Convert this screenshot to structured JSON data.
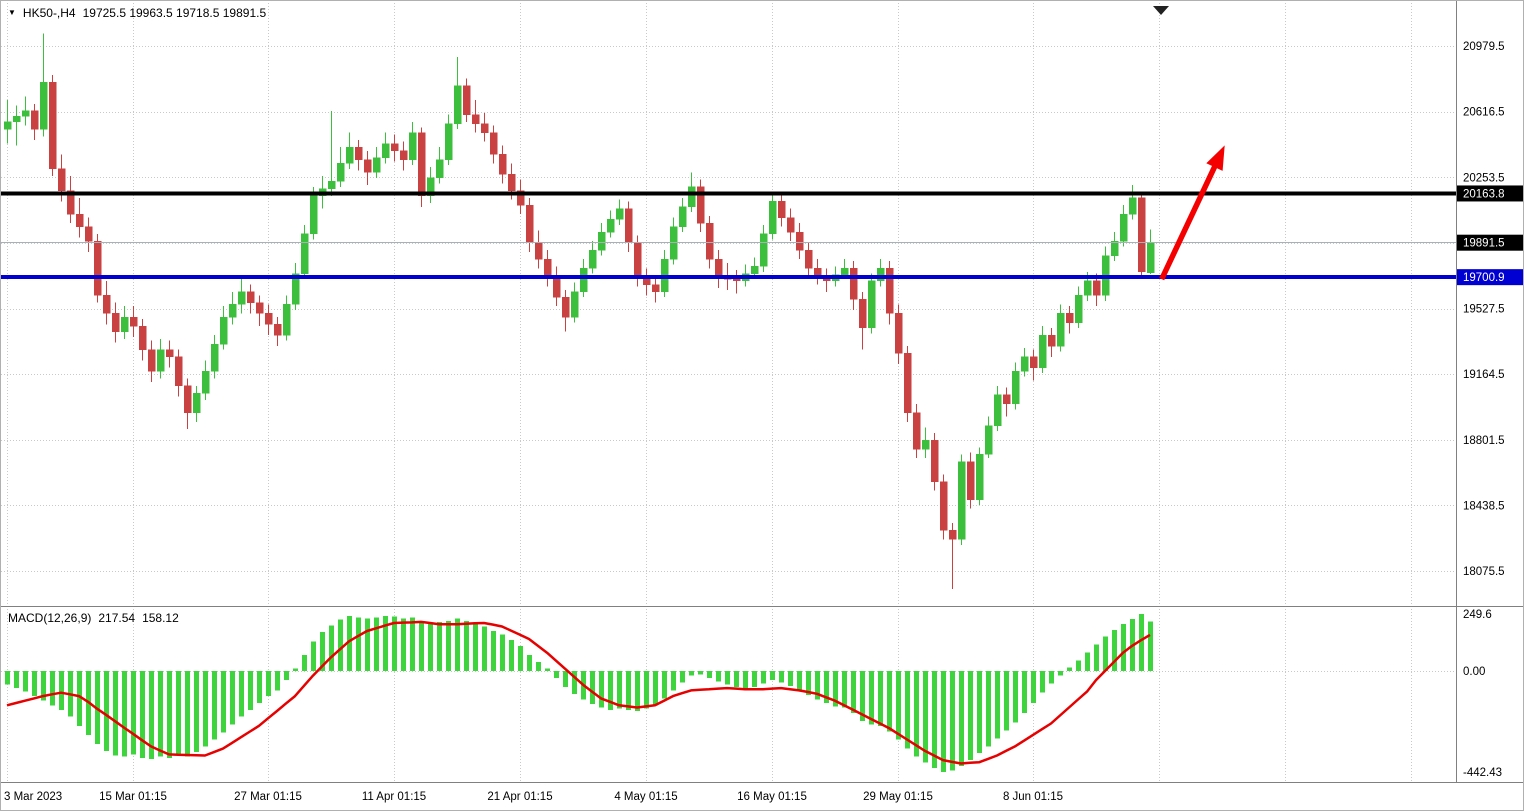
{
  "header": {
    "symbol_period": "HK50-,H4",
    "ohlc": "19725.5 19963.5 19718.5 19891.5"
  },
  "icons": {
    "symbol_triangle": "▼",
    "shift_marker": "▼"
  },
  "macd_panel": {
    "label": "MACD(12,26,9)",
    "main_value": "217.54",
    "signal_value": "158.12"
  },
  "colors": {
    "bg": "#ffffff",
    "grid": "#c9c9c9",
    "up": "#3cbf3c",
    "down": "#c94141",
    "macd_hist": "#3dd43d",
    "macd_signal": "#e60000",
    "level_black": "#000000",
    "level_blue": "#0000d2",
    "current_line": "#a8b0b8",
    "arrow": "#f40000",
    "axis_text": "#000000",
    "badge_text": "#ffffff",
    "separator": "#808080",
    "marker": "#222222"
  },
  "chart_data": [
    {
      "type": "candlestick",
      "symbol": "HK50-",
      "timeframe": "H4",
      "last_candle": {
        "open": 19725.5,
        "high": 19963.5,
        "low": 19718.5,
        "close": 19891.5
      },
      "y_ticks": [
        20979.5,
        20616.5,
        20253.5,
        19891.5,
        19527.5,
        19164.5,
        18801.5,
        18438.5,
        18075.5
      ],
      "x_ticks": [
        {
          "index": 0,
          "label": "3 Mar 2023"
        },
        {
          "index": 14,
          "label": "15 Mar 01:15"
        },
        {
          "index": 29,
          "label": "27 Mar 01:15"
        },
        {
          "index": 43,
          "label": "11 Apr 01:15"
        },
        {
          "index": 57,
          "label": "21 Apr 01:15"
        },
        {
          "index": 71,
          "label": "4 May 01:15"
        },
        {
          "index": 85,
          "label": "16 May 01:15"
        },
        {
          "index": 99,
          "label": "29 May 01:15"
        },
        {
          "index": 114,
          "label": "8 Jun 01:15"
        },
        {
          "index": 128,
          "label": ""
        },
        {
          "index": 142,
          "label": ""
        },
        {
          "index": 156,
          "label": ""
        }
      ],
      "levels": [
        {
          "name": "resistance",
          "label": "20163.8",
          "value": 20163.8,
          "color": "#000000",
          "line_width": 4,
          "badge_bg": "#000000"
        },
        {
          "name": "current-price",
          "label": "19891.5",
          "value": 19891.5,
          "color": "#a8b0b8",
          "line_width": 1,
          "badge_bg": "#000000"
        },
        {
          "name": "support",
          "label": "19700.9",
          "value": 19700.9,
          "color": "#0000d2",
          "line_width": 4,
          "badge_bg": "#0000d2"
        }
      ],
      "arrow": {
        "from_index": 128.3,
        "from_price": 19690,
        "to_index": 135.3,
        "to_price": 20430
      },
      "ohlc": [
        [
          20520,
          20680,
          20440,
          20560
        ],
        [
          20560,
          20650,
          20430,
          20590
        ],
        [
          20590,
          20700,
          20540,
          20620
        ],
        [
          20620,
          20660,
          20460,
          20520
        ],
        [
          20520,
          21050,
          20480,
          20780
        ],
        [
          20780,
          20820,
          20260,
          20300
        ],
        [
          20300,
          20380,
          20120,
          20180
        ],
        [
          20180,
          20260,
          20000,
          20050
        ],
        [
          20050,
          20140,
          19920,
          19980
        ],
        [
          19980,
          20030,
          19840,
          19900
        ],
        [
          19900,
          19940,
          19560,
          19600
        ],
        [
          19600,
          19680,
          19440,
          19500
        ],
        [
          19500,
          19560,
          19340,
          19400
        ],
        [
          19400,
          19540,
          19360,
          19480
        ],
        [
          19480,
          19540,
          19370,
          19430
        ],
        [
          19430,
          19470,
          19240,
          19300
        ],
        [
          19300,
          19350,
          19120,
          19180
        ],
        [
          19180,
          19360,
          19140,
          19300
        ],
        [
          19300,
          19350,
          19200,
          19260
        ],
        [
          19260,
          19300,
          19040,
          19100
        ],
        [
          19100,
          19140,
          18860,
          18950
        ],
        [
          18950,
          19100,
          18900,
          19060
        ],
        [
          19060,
          19240,
          19020,
          19180
        ],
        [
          19180,
          19380,
          19140,
          19330
        ],
        [
          19330,
          19540,
          19300,
          19480
        ],
        [
          19480,
          19620,
          19440,
          19550
        ],
        [
          19550,
          19700,
          19500,
          19620
        ],
        [
          19620,
          19660,
          19500,
          19560
        ],
        [
          19560,
          19600,
          19430,
          19500
        ],
        [
          19500,
          19550,
          19380,
          19440
        ],
        [
          19440,
          19480,
          19320,
          19380
        ],
        [
          19380,
          19600,
          19350,
          19550
        ],
        [
          19550,
          19780,
          19520,
          19720
        ],
        [
          19720,
          19990,
          19690,
          19940
        ],
        [
          19940,
          20200,
          19910,
          20150
        ],
        [
          20150,
          20260,
          20080,
          20190
        ],
        [
          20190,
          20620,
          20150,
          20230
        ],
        [
          20230,
          20420,
          20200,
          20330
        ],
        [
          20330,
          20500,
          20300,
          20420
        ],
        [
          20420,
          20460,
          20290,
          20350
        ],
        [
          20350,
          20400,
          20210,
          20280
        ],
        [
          20280,
          20420,
          20250,
          20360
        ],
        [
          20360,
          20500,
          20330,
          20440
        ],
        [
          20440,
          20490,
          20340,
          20400
        ],
        [
          20400,
          20450,
          20290,
          20350
        ],
        [
          20350,
          20560,
          20320,
          20500
        ],
        [
          20500,
          20530,
          20090,
          20150
        ],
        [
          20150,
          20310,
          20110,
          20250
        ],
        [
          20250,
          20420,
          20220,
          20350
        ],
        [
          20350,
          20600,
          20320,
          20550
        ],
        [
          20550,
          20920,
          20520,
          20760
        ],
        [
          20760,
          20800,
          20560,
          20600
        ],
        [
          20600,
          20680,
          20500,
          20550
        ],
        [
          20550,
          20610,
          20450,
          20500
        ],
        [
          20500,
          20540,
          20330,
          20380
        ],
        [
          20380,
          20430,
          20220,
          20270
        ],
        [
          20270,
          20330,
          20130,
          20180
        ],
        [
          20180,
          20240,
          20050,
          20100
        ],
        [
          20100,
          20140,
          19840,
          19890
        ],
        [
          19890,
          19960,
          19750,
          19800
        ],
        [
          19800,
          19850,
          19650,
          19700
        ],
        [
          19700,
          19760,
          19540,
          19590
        ],
        [
          19590,
          19630,
          19400,
          19480
        ],
        [
          19480,
          19670,
          19450,
          19620
        ],
        [
          19620,
          19800,
          19590,
          19750
        ],
        [
          19750,
          19900,
          19720,
          19850
        ],
        [
          19850,
          20000,
          19820,
          19950
        ],
        [
          19950,
          20070,
          19920,
          20020
        ],
        [
          20020,
          20130,
          19990,
          20080
        ],
        [
          20080,
          20120,
          19840,
          19890
        ],
        [
          19890,
          19930,
          19650,
          19700
        ],
        [
          19700,
          19750,
          19600,
          19660
        ],
        [
          19660,
          19700,
          19560,
          19620
        ],
        [
          19620,
          19850,
          19590,
          19800
        ],
        [
          19800,
          20030,
          19770,
          19980
        ],
        [
          19980,
          20140,
          19950,
          20090
        ],
        [
          20090,
          20280,
          20060,
          20200
        ],
        [
          20200,
          20240,
          19950,
          20000
        ],
        [
          20000,
          20040,
          19750,
          19800
        ],
        [
          19800,
          19850,
          19640,
          19700
        ],
        [
          19700,
          19780,
          19630,
          19690
        ],
        [
          19690,
          19740,
          19610,
          19680
        ],
        [
          19680,
          19770,
          19650,
          19720
        ],
        [
          19720,
          19810,
          19690,
          19760
        ],
        [
          19760,
          19990,
          19730,
          19940
        ],
        [
          19940,
          20170,
          19910,
          20120
        ],
        [
          20120,
          20160,
          19980,
          20030
        ],
        [
          20030,
          20080,
          19900,
          19950
        ],
        [
          19950,
          20000,
          19800,
          19850
        ],
        [
          19850,
          19890,
          19700,
          19750
        ],
        [
          19750,
          19800,
          19660,
          19710
        ],
        [
          19710,
          19750,
          19620,
          19680
        ],
        [
          19680,
          19760,
          19650,
          19715
        ],
        [
          19715,
          19800,
          19690,
          19750
        ],
        [
          19750,
          19790,
          19520,
          19580
        ],
        [
          19580,
          19620,
          19300,
          19420
        ],
        [
          19420,
          19720,
          19390,
          19680
        ],
        [
          19680,
          19800,
          19650,
          19750
        ],
        [
          19750,
          19790,
          19440,
          19500
        ],
        [
          19500,
          19550,
          19220,
          19280
        ],
        [
          19280,
          19320,
          18900,
          18950
        ],
        [
          18950,
          19000,
          18700,
          18750
        ],
        [
          18750,
          18870,
          18700,
          18800
        ],
        [
          18800,
          18840,
          18520,
          18570
        ],
        [
          18570,
          18610,
          18250,
          18300
        ],
        [
          18300,
          18340,
          17975,
          18250
        ],
        [
          18250,
          18720,
          18220,
          18680
        ],
        [
          18680,
          18730,
          18420,
          18470
        ],
        [
          18470,
          18760,
          18440,
          18720
        ],
        [
          18720,
          18930,
          18700,
          18880
        ],
        [
          18880,
          19100,
          18850,
          19050
        ],
        [
          19050,
          19090,
          18930,
          19000
        ],
        [
          19000,
          19230,
          18970,
          19180
        ],
        [
          19180,
          19310,
          19150,
          19260
        ],
        [
          19260,
          19300,
          19130,
          19200
        ],
        [
          19200,
          19430,
          19170,
          19380
        ],
        [
          19380,
          19420,
          19260,
          19320
        ],
        [
          19320,
          19550,
          19290,
          19500
        ],
        [
          19500,
          19540,
          19390,
          19450
        ],
        [
          19450,
          19650,
          19420,
          19600
        ],
        [
          19600,
          19730,
          19570,
          19680
        ],
        [
          19680,
          19720,
          19540,
          19600
        ],
        [
          19600,
          19870,
          19570,
          19820
        ],
        [
          19820,
          19950,
          19790,
          19900
        ],
        [
          19900,
          20100,
          19870,
          20050
        ],
        [
          20050,
          20210,
          20020,
          20140
        ],
        [
          20140,
          20170,
          19700,
          19730
        ],
        [
          19725.5,
          19963.5,
          19718.5,
          19891.5
        ]
      ]
    },
    {
      "type": "bar",
      "name": "MACD(12,26,9)",
      "values": {
        "macd": 217.54,
        "signal": 158.12
      },
      "y_ticks": [
        {
          "value": 249.6,
          "label": "249.6"
        },
        {
          "value": 0,
          "label": "0.00"
        },
        {
          "value": -442.43,
          "label": "-442.43"
        }
      ],
      "histogram": [
        -60,
        -75,
        -90,
        -110,
        -130,
        -150,
        -170,
        -200,
        -240,
        -280,
        -320,
        -350,
        -370,
        -375,
        -365,
        -380,
        -385,
        -375,
        -380,
        -370,
        -375,
        -355,
        -330,
        -300,
        -270,
        -235,
        -200,
        -170,
        -140,
        -110,
        -85,
        -40,
        10,
        70,
        130,
        170,
        200,
        225,
        240,
        235,
        230,
        235,
        240,
        238,
        230,
        235,
        215,
        210,
        215,
        220,
        230,
        220,
        205,
        195,
        175,
        160,
        135,
        110,
        70,
        40,
        10,
        -30,
        -70,
        -100,
        -125,
        -145,
        -160,
        -170,
        -165,
        -170,
        -175,
        -165,
        -150,
        -120,
        -85,
        -50,
        -20,
        -15,
        -30,
        -45,
        -60,
        -70,
        -75,
        -70,
        -55,
        -40,
        -50,
        -65,
        -85,
        -105,
        -125,
        -140,
        -155,
        -160,
        -185,
        -220,
        -235,
        -240,
        -265,
        -300,
        -340,
        -375,
        -400,
        -425,
        -442.43,
        -435,
        -415,
        -390,
        -360,
        -330,
        -295,
        -260,
        -225,
        -185,
        -140,
        -95,
        -55,
        -20,
        15,
        45,
        80,
        115,
        150,
        180,
        205,
        228,
        249.6,
        217.54
      ],
      "signal": [
        -150,
        -140,
        -130,
        -120,
        -110,
        -102,
        -95,
        -102,
        -110,
        -135,
        -165,
        -192,
        -220,
        -248,
        -275,
        -303,
        -330,
        -348,
        -365,
        -367,
        -368,
        -369,
        -370,
        -355,
        -340,
        -315,
        -290,
        -265,
        -240,
        -207,
        -175,
        -142,
        -110,
        -65,
        -20,
        20,
        60,
        95,
        130,
        153,
        175,
        187,
        199,
        210,
        212,
        213,
        215,
        210,
        205,
        205,
        205,
        207,
        209,
        210,
        203,
        195,
        177,
        159,
        140,
        110,
        80,
        45,
        10,
        -25,
        -60,
        -90,
        -120,
        -135,
        -150,
        -155,
        -160,
        -155,
        -150,
        -130,
        -110,
        -97,
        -85,
        -82,
        -80,
        -77,
        -75,
        -77,
        -80,
        -80,
        -80,
        -77,
        -75,
        -80,
        -85,
        -92,
        -100,
        -115,
        -130,
        -150,
        -170,
        -190,
        -210,
        -230,
        -250,
        -275,
        -300,
        -325,
        -350,
        -370,
        -390,
        -398,
        -405,
        -402,
        -400,
        -385,
        -370,
        -350,
        -330,
        -305,
        -280,
        -255,
        -230,
        -195,
        -160,
        -125,
        -90,
        -40,
        0,
        40,
        80,
        110,
        135,
        158.12
      ]
    }
  ]
}
